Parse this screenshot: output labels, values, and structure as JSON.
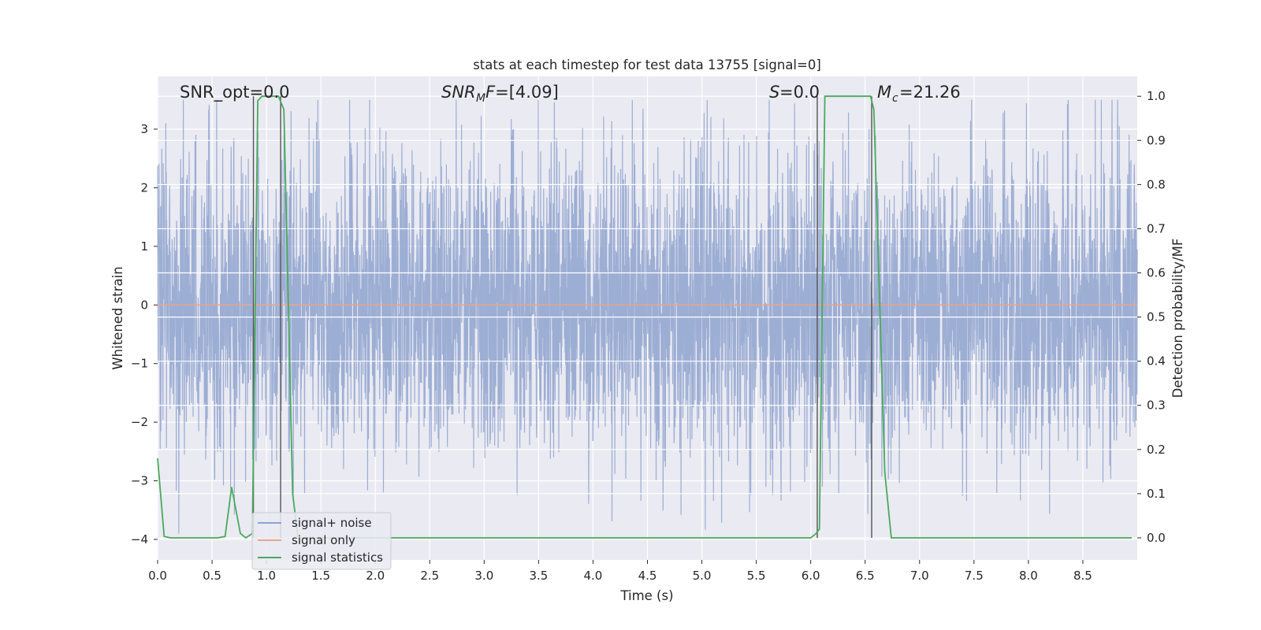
{
  "chart_data": {
    "type": "line",
    "title": "stats at each timestep for test data 13755 [signal=0]",
    "xlabel": "Time (s)",
    "ylabel": "Whitened strain",
    "y2label": "Detection probability/MF",
    "xlim": [
      0,
      9.0
    ],
    "ylim": [
      -4.35,
      3.9
    ],
    "y2lim": [
      -0.05,
      1.045
    ],
    "xticks": [
      0.0,
      0.5,
      1.0,
      1.5,
      2.0,
      2.5,
      3.0,
      3.5,
      4.0,
      4.5,
      5.0,
      5.5,
      6.0,
      6.5,
      7.0,
      7.5,
      8.0,
      8.5
    ],
    "xtick_labels": [
      "0.0",
      "0.5",
      "1.0",
      "1.5",
      "2.0",
      "2.5",
      "3.0",
      "3.5",
      "4.0",
      "4.5",
      "5.0",
      "5.5",
      "6.0",
      "6.5",
      "7.0",
      "7.5",
      "8.0",
      "8.5"
    ],
    "yticks": [
      3,
      2,
      1,
      0,
      -1,
      -2,
      -3,
      -4
    ],
    "ytick_labels": [
      "3",
      "2",
      "1",
      "0",
      "−1",
      "−2",
      "−3",
      "−4"
    ],
    "y2ticks": [
      1.0,
      0.9,
      0.8,
      0.7,
      0.6,
      0.5,
      0.4,
      0.3,
      0.2,
      0.1,
      0.0
    ],
    "y2tick_labels": [
      "1.0",
      "0.9",
      "0.8",
      "0.7",
      "0.6",
      "0.5",
      "0.4",
      "0.3",
      "0.2",
      "0.1",
      "0.0"
    ],
    "grid": true,
    "legend_position": "lower-left",
    "annotations": {
      "snr_opt": "SNR_opt=0.0",
      "snr_mf_main": "SNR",
      "snr_mf_sub": "M",
      "snr_mf_rest": "F=[4.09]",
      "s_main": "S",
      "s_rest": "=0.0",
      "mc_main": "M",
      "mc_sub": "c",
      "mc_rest": "=21.26"
    },
    "series": [
      {
        "name": "signal+ noise",
        "color": "#8fa3cf",
        "style": "noise",
        "t_range": [
          0,
          9.0
        ],
        "typical_amplitude": 1.3,
        "max_amplitude": 3.5,
        "min_value": -4.0
      },
      {
        "name": "signal only",
        "color": "#e8a68a",
        "x": [
          0,
          9.0
        ],
        "y": [
          0,
          0
        ]
      },
      {
        "name": "signal statistics",
        "color": "#4aaa5c",
        "axis": "y2",
        "x": [
          0.0,
          0.06,
          0.12,
          0.55,
          0.62,
          0.68,
          0.76,
          0.81,
          0.87,
          0.92,
          0.96,
          1.02,
          1.11,
          1.16,
          1.24,
          1.29,
          6.0,
          6.05,
          6.08,
          6.13,
          6.2,
          6.55,
          6.58,
          6.68,
          6.74,
          8.95
        ],
        "y": [
          0.18,
          0.003,
          0.0,
          0.0,
          0.003,
          0.115,
          0.01,
          0.0,
          0.01,
          0.99,
          1.0,
          1.0,
          1.0,
          0.97,
          0.1,
          0.0,
          0.0,
          0.01,
          0.02,
          1.0,
          1.0,
          1.0,
          0.97,
          0.15,
          0.0,
          0.0
        ]
      }
    ],
    "vertical_markers": [
      0.88,
      1.13,
      6.06,
      6.56
    ],
    "legend": [
      {
        "label": "signal+ noise",
        "color": "#8fa3cf"
      },
      {
        "label": "signal only",
        "color": "#e8a68a"
      },
      {
        "label": "signal statistics",
        "color": "#4aaa5c"
      }
    ]
  }
}
